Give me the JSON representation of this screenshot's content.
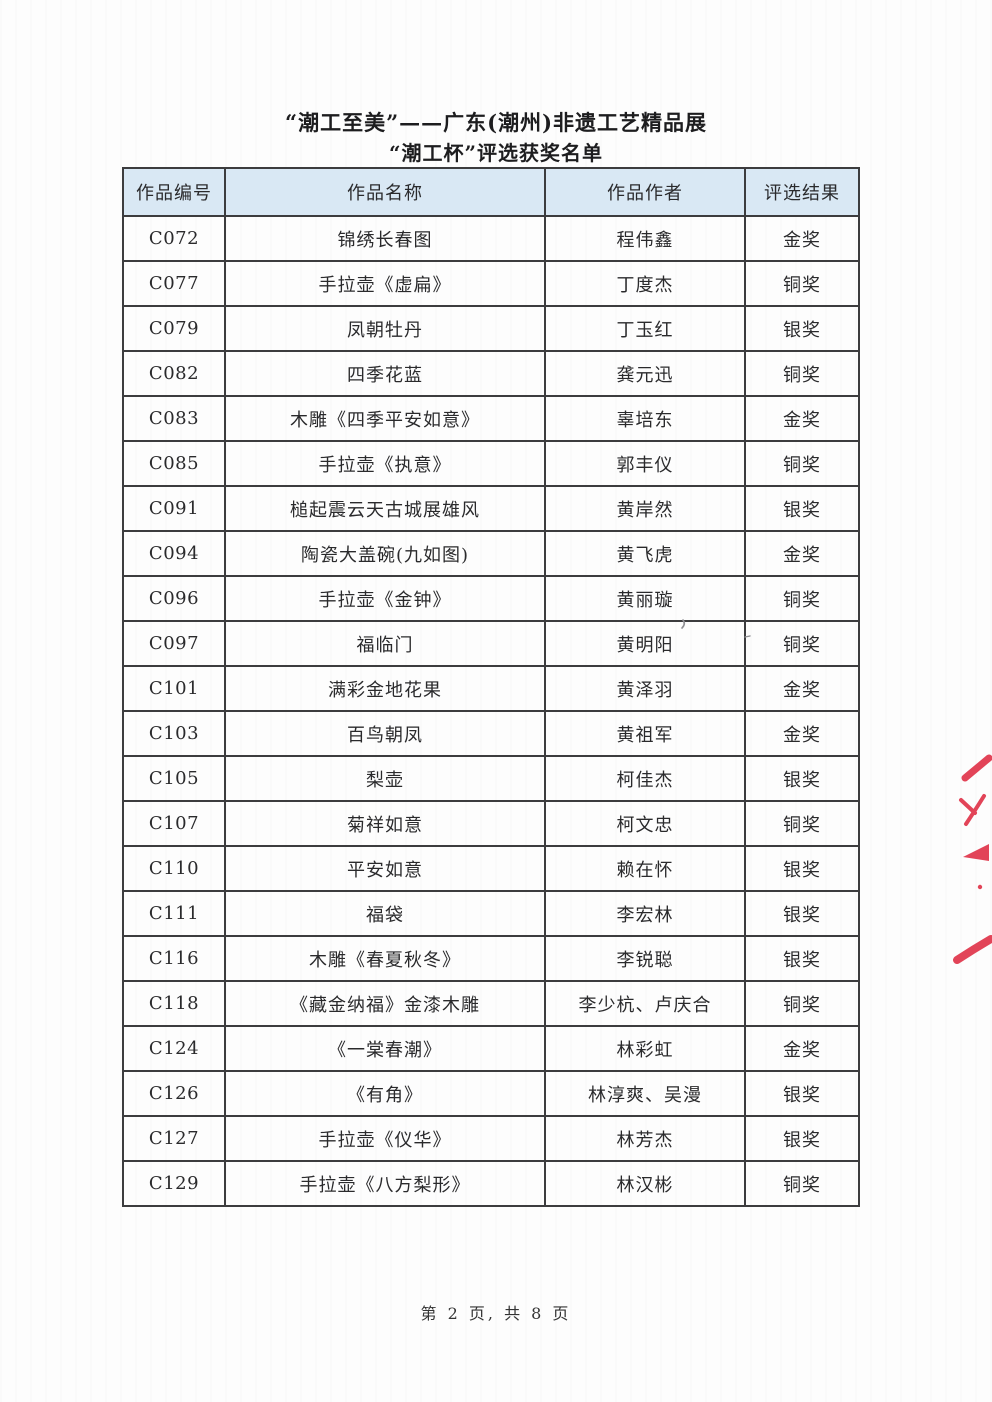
{
  "page": {
    "title_line1": "“潮工至美”——广东(潮州)非遗工艺精品展",
    "title_line2": "“潮工杯”评选获奖名单",
    "footer": "第 2 页, 共 8 页"
  },
  "table": {
    "headers": [
      "作品编号",
      "作品名称",
      "作品作者",
      "评选结果"
    ],
    "rows": [
      [
        "C072",
        "锦绣长春图",
        "程伟鑫",
        "金奖"
      ],
      [
        "C077",
        "手拉壶《虚扁》",
        "丁度杰",
        "铜奖"
      ],
      [
        "C079",
        "凤朝牡丹",
        "丁玉红",
        "银奖"
      ],
      [
        "C082",
        "四季花蓝",
        "龚元迅",
        "铜奖"
      ],
      [
        "C083",
        "木雕《四季平安如意》",
        "辜培东",
        "金奖"
      ],
      [
        "C085",
        "手拉壶《执意》",
        "郭丰仪",
        "铜奖"
      ],
      [
        "C091",
        "槌起震云天古城展雄风",
        "黄岸然",
        "银奖"
      ],
      [
        "C094",
        "陶瓷大盖碗(九如图)",
        "黄飞虎",
        "金奖"
      ],
      [
        "C096",
        "手拉壶《金钟》",
        "黄丽璇",
        "铜奖"
      ],
      [
        "C097",
        "福临门",
        "黄明阳",
        "铜奖"
      ],
      [
        "C101",
        "满彩金地花果",
        "黄泽羽",
        "金奖"
      ],
      [
        "C103",
        "百鸟朝凤",
        "黄祖军",
        "金奖"
      ],
      [
        "C105",
        "梨壶",
        "柯佳杰",
        "银奖"
      ],
      [
        "C107",
        "菊祥如意",
        "柯文忠",
        "铜奖"
      ],
      [
        "C110",
        "平安如意",
        "赖在怀",
        "银奖"
      ],
      [
        "C111",
        "福袋",
        "李宏林",
        "银奖"
      ],
      [
        "C116",
        "木雕《春夏秋冬》",
        "李锐聪",
        "银奖"
      ],
      [
        "C118",
        "《藏金纳福》金漆木雕",
        "李少杭、卢庆合",
        "铜奖"
      ],
      [
        "C124",
        "《一棠春潮》",
        "林彩虹",
        "金奖"
      ],
      [
        "C126",
        "《有角》",
        "林淳爽、吴漫",
        "银奖"
      ],
      [
        "C127",
        "手拉壶《仪华》",
        "林芳杰",
        "银奖"
      ],
      [
        "C129",
        "手拉壶《八方梨形》",
        "林汉彬",
        "铜奖"
      ]
    ]
  },
  "colors": {
    "header_bg": "#d9e8f4",
    "table_border": "#3c3c3e",
    "text": "#2a2a2c",
    "red_pen": "#e24458",
    "pencil_mark": "#8f8f93"
  },
  "annotations": {
    "red_pen_marks": "handwritten red pen strokes clipped at right margin",
    "pencil_mark": "small gray pencil smudge after author name in row C096"
  }
}
